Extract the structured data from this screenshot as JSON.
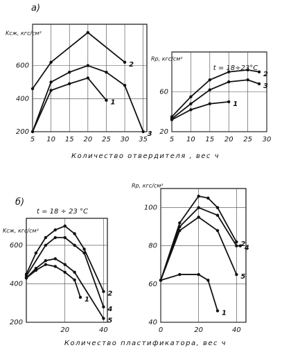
{
  "chart_data": [
    {
      "type": "line",
      "title": "а)",
      "ylabel": "Kсж, кгс/см²",
      "xlabel": "Количество отвердителя , вес ч",
      "xlim": [
        5,
        36
      ],
      "xticks": [
        5,
        10,
        15,
        20,
        25,
        30,
        35
      ],
      "ylim": [
        200,
        850
      ],
      "yticks": [
        200,
        400,
        600
      ],
      "grid": true,
      "series": [
        {
          "name": "2",
          "color": "#111",
          "x": [
            5,
            10,
            20,
            30
          ],
          "values": [
            460,
            620,
            800,
            620
          ]
        },
        {
          "name": "1",
          "color": "#111",
          "x": [
            5,
            10,
            15,
            20,
            25
          ],
          "values": [
            200,
            450,
            490,
            525,
            390
          ]
        },
        {
          "name": "3",
          "color": "#111",
          "x": [
            5,
            10,
            15,
            20,
            25,
            30,
            35
          ],
          "values": [
            200,
            500,
            560,
            600,
            560,
            480,
            200
          ]
        }
      ]
    },
    {
      "type": "line",
      "ylabel": "Rр, кгс/см²",
      "annotation": "t = 18÷23°C",
      "xlim": [
        5,
        30
      ],
      "xticks": [
        5,
        10,
        15,
        20,
        25,
        30
      ],
      "ylim": [
        20,
        100
      ],
      "yticks": [
        20,
        60
      ],
      "grid": true,
      "series": [
        {
          "name": "2",
          "color": "#111",
          "x": [
            5,
            10,
            15,
            20,
            25,
            28
          ],
          "values": [
            35,
            55,
            72,
            80,
            82,
            80
          ]
        },
        {
          "name": "3",
          "color": "#111",
          "x": [
            5,
            10,
            15,
            20,
            25,
            28
          ],
          "values": [
            33,
            48,
            62,
            70,
            72,
            68
          ]
        },
        {
          "name": "1",
          "color": "#111",
          "x": [
            5,
            10,
            15,
            20
          ],
          "values": [
            32,
            42,
            48,
            50
          ]
        }
      ]
    },
    {
      "type": "line",
      "title": "б)",
      "ylabel": "Kсж, кгс/см²",
      "annotation": "t = 18 ÷ 23 °C",
      "xlabel": "Количество пластификатора, вес ч",
      "xlim": [
        0,
        42
      ],
      "xticks": [
        20,
        40
      ],
      "ylim": [
        200,
        740
      ],
      "yticks": [
        200,
        400,
        600
      ],
      "grid": true,
      "series": [
        {
          "name": "2",
          "color": "#111",
          "x": [
            0,
            5,
            10,
            15,
            20,
            25,
            30,
            40
          ],
          "values": [
            450,
            560,
            640,
            680,
            700,
            660,
            580,
            360
          ]
        },
        {
          "name": "4",
          "color": "#111",
          "x": [
            0,
            10,
            15,
            20,
            25,
            30,
            40
          ],
          "values": [
            440,
            600,
            640,
            640,
            600,
            560,
            280
          ]
        },
        {
          "name": "5",
          "color": "#111",
          "x": [
            0,
            5,
            10,
            15,
            20,
            25,
            40
          ],
          "values": [
            430,
            480,
            520,
            530,
            500,
            460,
            220
          ]
        },
        {
          "name": "1",
          "color": "#111",
          "x": [
            0,
            5,
            10,
            15,
            20,
            25,
            28
          ],
          "values": [
            430,
            470,
            500,
            490,
            460,
            420,
            330
          ]
        }
      ]
    },
    {
      "type": "line",
      "ylabel": "Rр, кгс/см²",
      "xlim": [
        0,
        45
      ],
      "xticks": [
        0,
        20,
        40
      ],
      "ylim": [
        40,
        110
      ],
      "yticks": [
        40,
        60,
        80,
        100
      ],
      "grid": true,
      "series": [
        {
          "name": "2",
          "color": "#111",
          "x": [
            0,
            10,
            20,
            25,
            30,
            40
          ],
          "values": [
            62,
            92,
            106,
            105,
            100,
            82
          ]
        },
        {
          "name": "4",
          "color": "#111",
          "x": [
            0,
            10,
            20,
            30,
            40,
            42
          ],
          "values": [
            62,
            90,
            100,
            96,
            80,
            80
          ]
        },
        {
          "name": "5",
          "color": "#111",
          "x": [
            0,
            10,
            20,
            30,
            40
          ],
          "values": [
            62,
            88,
            95,
            88,
            65
          ]
        },
        {
          "name": "1",
          "color": "#111",
          "x": [
            0,
            10,
            20,
            25,
            30
          ],
          "values": [
            62,
            65,
            65,
            62,
            46
          ]
        }
      ]
    }
  ]
}
